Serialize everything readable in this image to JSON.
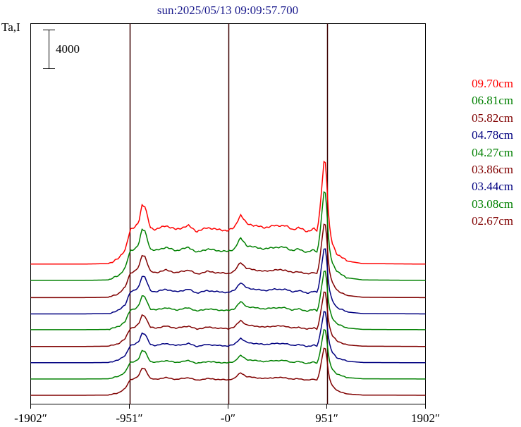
{
  "chart_data": {
    "type": "line",
    "title": "sun:2025/05/13 09:09:57.700",
    "ylabel": "Ta,I",
    "scale_bar_label": "4000",
    "xlim": [
      -1902,
      1902
    ],
    "x_ticks": [
      -1902,
      -951,
      0,
      951,
      1902
    ],
    "x_tick_labels": [
      "-1902″",
      "-951″",
      "-0″",
      "951″",
      "1902″"
    ],
    "vertical_lines": [
      -951,
      0,
      951
    ],
    "grid": false,
    "legend_position": "right",
    "series": [
      {
        "name": "09.70cm",
        "color": "#ff0000",
        "baseline": 12600,
        "amp": 1.0
      },
      {
        "name": "06.81cm",
        "color": "#008000",
        "baseline": 10950,
        "amp": 0.86
      },
      {
        "name": "05.82cm",
        "color": "#800000",
        "baseline": 9200,
        "amp": 0.72
      },
      {
        "name": "04.78cm",
        "color": "#000080",
        "baseline": 7550,
        "amp": 0.64
      },
      {
        "name": "04.27cm",
        "color": "#008000",
        "baseline": 5950,
        "amp": 0.57
      },
      {
        "name": "03.86cm",
        "color": "#800000",
        "baseline": 4250,
        "amp": 0.53
      },
      {
        "name": "03.44cm",
        "color": "#000080",
        "baseline": 2600,
        "amp": 0.5
      },
      {
        "name": "03.08cm",
        "color": "#008000",
        "baseline": 950,
        "amp": 0.48
      },
      {
        "name": "02.67cm",
        "color": "#800000",
        "baseline": -700,
        "amp": 0.46
      }
    ],
    "profile_x": [
      -1902,
      -1400,
      -1150,
      -1050,
      -990,
      -960,
      -940,
      -900,
      -860,
      -830,
      -800,
      -750,
      -700,
      -600,
      -500,
      -380,
      -300,
      -200,
      -100,
      0,
      60,
      120,
      180,
      260,
      350,
      450,
      550,
      620,
      680,
      760,
      830,
      860,
      880,
      900,
      925,
      945,
      955,
      975,
      1000,
      1050,
      1150,
      1300,
      1902
    ],
    "profile_y": [
      0,
      0,
      50,
      600,
      1500,
      2800,
      3500,
      3700,
      4300,
      6000,
      5800,
      3700,
      3500,
      3900,
      3500,
      3900,
      3300,
      3700,
      3500,
      3400,
      3700,
      5000,
      4100,
      3900,
      3700,
      3900,
      3900,
      3500,
      3700,
      3300,
      3600,
      3300,
      5000,
      7500,
      10500,
      10200,
      7000,
      4000,
      2200,
      1000,
      300,
      50,
      0
    ]
  },
  "legend": {
    "s0": "09.70cm",
    "s1": "06.81cm",
    "s2": "05.82cm",
    "s3": "04.78cm",
    "s4": "04.27cm",
    "s5": "03.86cm",
    "s6": "03.44cm",
    "s7": "03.08cm",
    "s8": "02.67cm"
  },
  "legend_colors": [
    "#ff0000",
    "#008000",
    "#800000",
    "#000080",
    "#008000",
    "#800000",
    "#000080",
    "#008000",
    "#800000"
  ]
}
